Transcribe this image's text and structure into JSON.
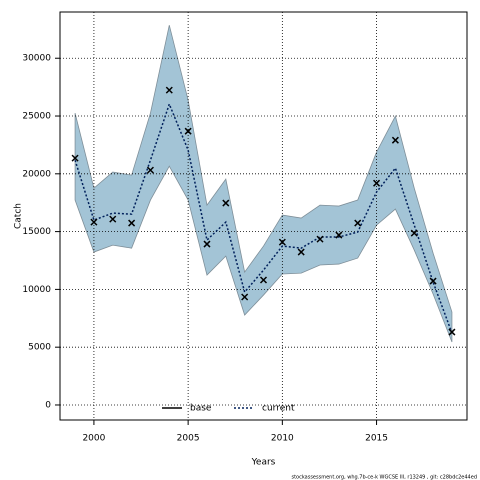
{
  "chart_data": {
    "type": "line",
    "xlabel": "Years",
    "ylabel": "Catch",
    "footer": "stockassessment.org, whg.7b-ce-k WGCSE III, r13249 , git: c28bdc2e44ed",
    "x": [
      1999,
      2000,
      2001,
      2002,
      2003,
      2004,
      2005,
      2006,
      2007,
      2008,
      2009,
      2010,
      2011,
      2012,
      2013,
      2014,
      2015,
      2016,
      2017,
      2018,
      2019
    ],
    "series": [
      {
        "name": "base",
        "color": "#000000",
        "values": [
          null,
          null,
          null,
          null,
          null,
          null,
          null,
          null,
          null,
          null,
          null,
          null,
          null,
          null,
          null,
          null,
          null,
          null,
          null,
          null,
          null
        ]
      },
      {
        "name": "current",
        "color": "#00205b",
        "values": [
          21180,
          16000,
          16600,
          16510,
          21180,
          26030,
          22050,
          14270,
          15820,
          9770,
          11670,
          13750,
          13570,
          14530,
          14530,
          14960,
          18420,
          20490,
          15560,
          10640,
          6230
        ]
      }
    ],
    "band": {
      "color": "#a3c4d6",
      "upper": [
        25250,
        18760,
        20150,
        19890,
        25250,
        32860,
        26370,
        17290,
        19540,
        11500,
        13750,
        16430,
        16170,
        17290,
        17210,
        17730,
        21880,
        24990,
        18760,
        13140,
        8040
      ],
      "lower": [
        17730,
        13230,
        13830,
        13570,
        17730,
        20660,
        17730,
        11240,
        12880,
        7780,
        9510,
        11330,
        11410,
        12110,
        12190,
        12710,
        15560,
        16950,
        13400,
        9600,
        5450
      ]
    },
    "points": {
      "color": "#000000",
      "values": [
        21360,
        15820,
        16080,
        15740,
        20320,
        27240,
        23690,
        13920,
        17470,
        9340,
        10810,
        14090,
        13230,
        14350,
        14700,
        15740,
        19190,
        22910,
        14870,
        10720,
        6310
      ]
    },
    "xlim": [
      1998.2,
      2019.8
    ],
    "ylim": [
      -1300,
      34000
    ],
    "xticks": [
      2000,
      2005,
      2010,
      2015
    ],
    "yticks": [
      0,
      5000,
      10000,
      15000,
      20000,
      25000,
      30000
    ],
    "grid": true,
    "legend": "bottom"
  }
}
